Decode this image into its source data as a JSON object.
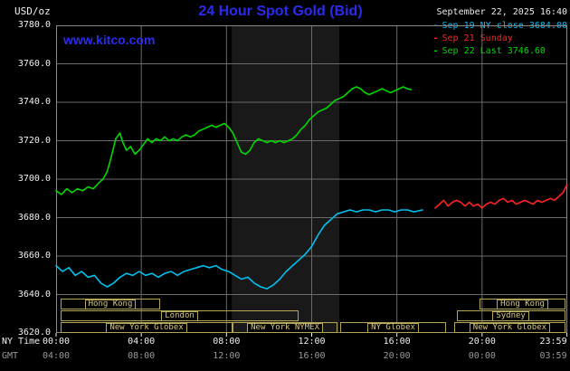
{
  "header": {
    "y_unit": "USD/oz",
    "title": "24 Hour Spot Gold (Bid)",
    "datetime": "September 22, 2025 16:40",
    "watermark": "www.kitco.com"
  },
  "colors": {
    "title_blue": "#2b2bee",
    "grid": "#6b6b6b",
    "frame": "#8a8a8a",
    "band": "#191919",
    "session": "#b3a558",
    "session_text": "#d6c77d",
    "axis_text": "#f0f0f0",
    "gmt_text": "#9a9a9a",
    "series_sep19": "#00c0f0",
    "series_sep21": "#ff2222",
    "series_sep22": "#00d800"
  },
  "legend": {
    "items": [
      {
        "label": "Sep 19 NY close 3684.00",
        "color_key": "series_sep19"
      },
      {
        "label": "Sep 21 Sunday",
        "color_key": "series_sep21"
      },
      {
        "label": "Sep 22 Last 3746.60",
        "color_key": "series_sep22"
      }
    ]
  },
  "axes": {
    "ny_time_label": "NY Time",
    "gmt_label": "GMT",
    "grid_hours": [
      4,
      8,
      12,
      16,
      20
    ],
    "x_label_hours": [
      0,
      4,
      8,
      12,
      16,
      20,
      23.983
    ],
    "ny_times": [
      "00:00",
      "04:00",
      "08:00",
      "12:00",
      "16:00",
      "20:00",
      "23:59"
    ],
    "gmt_times": [
      "04:00",
      "08:00",
      "12:00",
      "16:00",
      "20:00",
      "00:00",
      "03:59"
    ],
    "y_ticks": [
      "3780.0",
      "3760.0",
      "3740.0",
      "3720.0",
      "3700.0",
      "3680.0",
      "3660.0",
      "3640.0",
      "3620.0"
    ]
  },
  "sessions": [
    {
      "row": 0,
      "label": "Hong Kong",
      "start": 0.2,
      "end": 4.9
    },
    {
      "row": 0,
      "label": "Hong Kong",
      "start": 19.9,
      "end": 23.9
    },
    {
      "row": 1,
      "label": "London",
      "start": 0.2,
      "end": 11.4
    },
    {
      "row": 1,
      "label": "Sydney",
      "start": 18.8,
      "end": 23.9
    },
    {
      "row": 2,
      "label": "New York Globex",
      "start": 0.2,
      "end": 8.3
    },
    {
      "row": 2,
      "label": "New York NYMEX",
      "start": 8.3,
      "end": 13.2
    },
    {
      "row": 2,
      "label": "NY Globex",
      "start": 13.35,
      "end": 18.3
    },
    {
      "row": 2,
      "label": "New York Globex",
      "start": 18.7,
      "end": 23.9
    }
  ],
  "chart_data": {
    "type": "line",
    "title": "24 Hour Spot Gold (Bid)",
    "x_unit": "hour (NY Time)",
    "y_unit": "USD/oz",
    "x_range": [
      0,
      24
    ],
    "y_range": [
      3620,
      3780
    ],
    "grid": true,
    "legend_position": "top-right",
    "shaded_band_hours": [
      8.25,
      13.3
    ],
    "series": [
      {
        "name": "Sep 19 NY close 3684.00",
        "color_key": "series_sep19",
        "points": [
          [
            0,
            3655
          ],
          [
            0.3,
            3652
          ],
          [
            0.6,
            3654
          ],
          [
            0.9,
            3650
          ],
          [
            1.2,
            3652
          ],
          [
            1.5,
            3649
          ],
          [
            1.8,
            3650
          ],
          [
            2.1,
            3646
          ],
          [
            2.4,
            3644
          ],
          [
            2.7,
            3646
          ],
          [
            3.0,
            3649
          ],
          [
            3.3,
            3651
          ],
          [
            3.6,
            3650
          ],
          [
            3.9,
            3652
          ],
          [
            4.2,
            3650
          ],
          [
            4.5,
            3651
          ],
          [
            4.8,
            3649
          ],
          [
            5.1,
            3651
          ],
          [
            5.4,
            3652
          ],
          [
            5.7,
            3650
          ],
          [
            6.0,
            3652
          ],
          [
            6.3,
            3653
          ],
          [
            6.6,
            3654
          ],
          [
            6.9,
            3655
          ],
          [
            7.2,
            3654
          ],
          [
            7.5,
            3655
          ],
          [
            7.8,
            3653
          ],
          [
            8.1,
            3652
          ],
          [
            8.4,
            3650
          ],
          [
            8.7,
            3648
          ],
          [
            9.0,
            3649
          ],
          [
            9.3,
            3646
          ],
          [
            9.6,
            3644
          ],
          [
            9.9,
            3643
          ],
          [
            10.2,
            3645
          ],
          [
            10.5,
            3648
          ],
          [
            10.8,
            3652
          ],
          [
            11.1,
            3655
          ],
          [
            11.4,
            3658
          ],
          [
            11.7,
            3661
          ],
          [
            12.0,
            3665
          ],
          [
            12.3,
            3671
          ],
          [
            12.6,
            3676
          ],
          [
            12.9,
            3679
          ],
          [
            13.2,
            3682
          ],
          [
            13.5,
            3683
          ],
          [
            13.8,
            3684
          ],
          [
            14.1,
            3683
          ],
          [
            14.4,
            3684
          ],
          [
            14.7,
            3684
          ],
          [
            15.0,
            3683
          ],
          [
            15.3,
            3684
          ],
          [
            15.6,
            3684
          ],
          [
            15.9,
            3683
          ],
          [
            16.2,
            3684
          ],
          [
            16.5,
            3684
          ],
          [
            16.8,
            3683
          ],
          [
            17.2,
            3684
          ]
        ]
      },
      {
        "name": "Sep 21 Sunday",
        "color_key": "series_sep21",
        "points": [
          [
            17.8,
            3685
          ],
          [
            18.0,
            3687
          ],
          [
            18.2,
            3689
          ],
          [
            18.4,
            3686
          ],
          [
            18.6,
            3688
          ],
          [
            18.8,
            3689
          ],
          [
            19.0,
            3688
          ],
          [
            19.2,
            3686
          ],
          [
            19.4,
            3688
          ],
          [
            19.6,
            3686
          ],
          [
            19.8,
            3687
          ],
          [
            20.0,
            3685
          ],
          [
            20.2,
            3687
          ],
          [
            20.4,
            3688
          ],
          [
            20.6,
            3687
          ],
          [
            20.8,
            3689
          ],
          [
            21.0,
            3690
          ],
          [
            21.2,
            3688
          ],
          [
            21.4,
            3689
          ],
          [
            21.6,
            3687
          ],
          [
            21.8,
            3688
          ],
          [
            22.0,
            3689
          ],
          [
            22.2,
            3688
          ],
          [
            22.4,
            3687
          ],
          [
            22.6,
            3689
          ],
          [
            22.8,
            3688
          ],
          [
            23.0,
            3689
          ],
          [
            23.2,
            3690
          ],
          [
            23.4,
            3689
          ],
          [
            23.6,
            3691
          ],
          [
            23.8,
            3693
          ],
          [
            23.98,
            3697
          ]
        ]
      },
      {
        "name": "Sep 22 Last 3746.60",
        "color_key": "series_sep22",
        "points": [
          [
            0,
            3694
          ],
          [
            0.25,
            3692
          ],
          [
            0.5,
            3695
          ],
          [
            0.75,
            3693
          ],
          [
            1.0,
            3695
          ],
          [
            1.25,
            3694
          ],
          [
            1.5,
            3696
          ],
          [
            1.75,
            3695
          ],
          [
            2.0,
            3698
          ],
          [
            2.2,
            3700
          ],
          [
            2.4,
            3704
          ],
          [
            2.6,
            3712
          ],
          [
            2.8,
            3721
          ],
          [
            3.0,
            3724
          ],
          [
            3.1,
            3720
          ],
          [
            3.3,
            3715
          ],
          [
            3.5,
            3717
          ],
          [
            3.7,
            3713
          ],
          [
            3.9,
            3715
          ],
          [
            4.1,
            3718
          ],
          [
            4.3,
            3721
          ],
          [
            4.5,
            3719
          ],
          [
            4.7,
            3721
          ],
          [
            4.9,
            3720
          ],
          [
            5.1,
            3722
          ],
          [
            5.3,
            3720
          ],
          [
            5.5,
            3721
          ],
          [
            5.7,
            3720
          ],
          [
            5.9,
            3722
          ],
          [
            6.1,
            3723
          ],
          [
            6.3,
            3722
          ],
          [
            6.5,
            3723
          ],
          [
            6.7,
            3725
          ],
          [
            6.9,
            3726
          ],
          [
            7.1,
            3727
          ],
          [
            7.3,
            3728
          ],
          [
            7.5,
            3727
          ],
          [
            7.7,
            3728
          ],
          [
            7.9,
            3729
          ],
          [
            8.1,
            3727
          ],
          [
            8.3,
            3724
          ],
          [
            8.5,
            3719
          ],
          [
            8.7,
            3714
          ],
          [
            8.9,
            3713
          ],
          [
            9.1,
            3715
          ],
          [
            9.3,
            3719
          ],
          [
            9.5,
            3721
          ],
          [
            9.7,
            3720
          ],
          [
            9.9,
            3719
          ],
          [
            10.1,
            3720
          ],
          [
            10.3,
            3719
          ],
          [
            10.5,
            3720
          ],
          [
            10.7,
            3719
          ],
          [
            10.9,
            3720
          ],
          [
            11.1,
            3721
          ],
          [
            11.3,
            3723
          ],
          [
            11.5,
            3726
          ],
          [
            11.7,
            3728
          ],
          [
            11.9,
            3731
          ],
          [
            12.1,
            3733
          ],
          [
            12.3,
            3735
          ],
          [
            12.5,
            3736
          ],
          [
            12.7,
            3737
          ],
          [
            12.9,
            3739
          ],
          [
            13.1,
            3741
          ],
          [
            13.3,
            3742
          ],
          [
            13.5,
            3743
          ],
          [
            13.7,
            3745
          ],
          [
            13.9,
            3747
          ],
          [
            14.1,
            3748
          ],
          [
            14.3,
            3747
          ],
          [
            14.5,
            3745
          ],
          [
            14.7,
            3744
          ],
          [
            14.9,
            3745
          ],
          [
            15.1,
            3746
          ],
          [
            15.3,
            3747
          ],
          [
            15.5,
            3746
          ],
          [
            15.7,
            3745
          ],
          [
            15.9,
            3746
          ],
          [
            16.1,
            3747
          ],
          [
            16.3,
            3748
          ],
          [
            16.5,
            3747
          ],
          [
            16.67,
            3746.6
          ]
        ]
      }
    ]
  }
}
